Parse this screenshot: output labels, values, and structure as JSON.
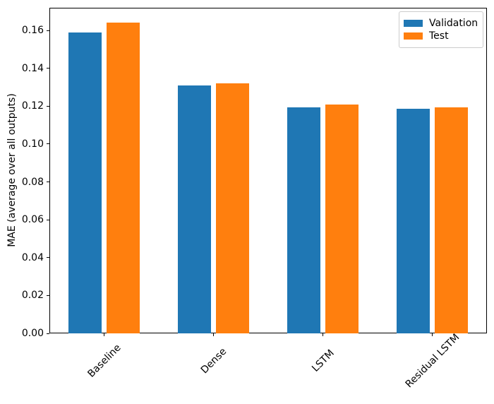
{
  "figure": {
    "background": "#ffffff",
    "text_color": "#000000"
  },
  "chart_data": {
    "type": "bar",
    "title": "",
    "xlabel": "",
    "ylabel": "MAE (average over all outputs)",
    "categories": [
      "Baseline",
      "Dense",
      "LSTM",
      "Residual LSTM"
    ],
    "series": [
      {
        "name": "Validation",
        "color": "#1f77b4",
        "values": [
          0.159,
          0.131,
          0.1195,
          0.1185
        ]
      },
      {
        "name": "Test",
        "color": "#ff7f0e",
        "values": [
          0.164,
          0.132,
          0.121,
          0.1195
        ]
      }
    ],
    "ylim": [
      0,
      0.172
    ],
    "yticks": [
      0.0,
      0.02,
      0.04,
      0.06,
      0.08,
      0.1,
      0.12,
      0.14,
      0.16
    ],
    "ytick_labels": [
      "0.00",
      "0.02",
      "0.04",
      "0.06",
      "0.08",
      "0.10",
      "0.12",
      "0.14",
      "0.16"
    ],
    "xtick_rotation_deg": 45,
    "grid": false,
    "bar_width_fraction": 0.3,
    "bar_offset_fraction": 0.175,
    "legend": {
      "position": "upper right",
      "entries": [
        "Validation",
        "Test"
      ]
    }
  }
}
